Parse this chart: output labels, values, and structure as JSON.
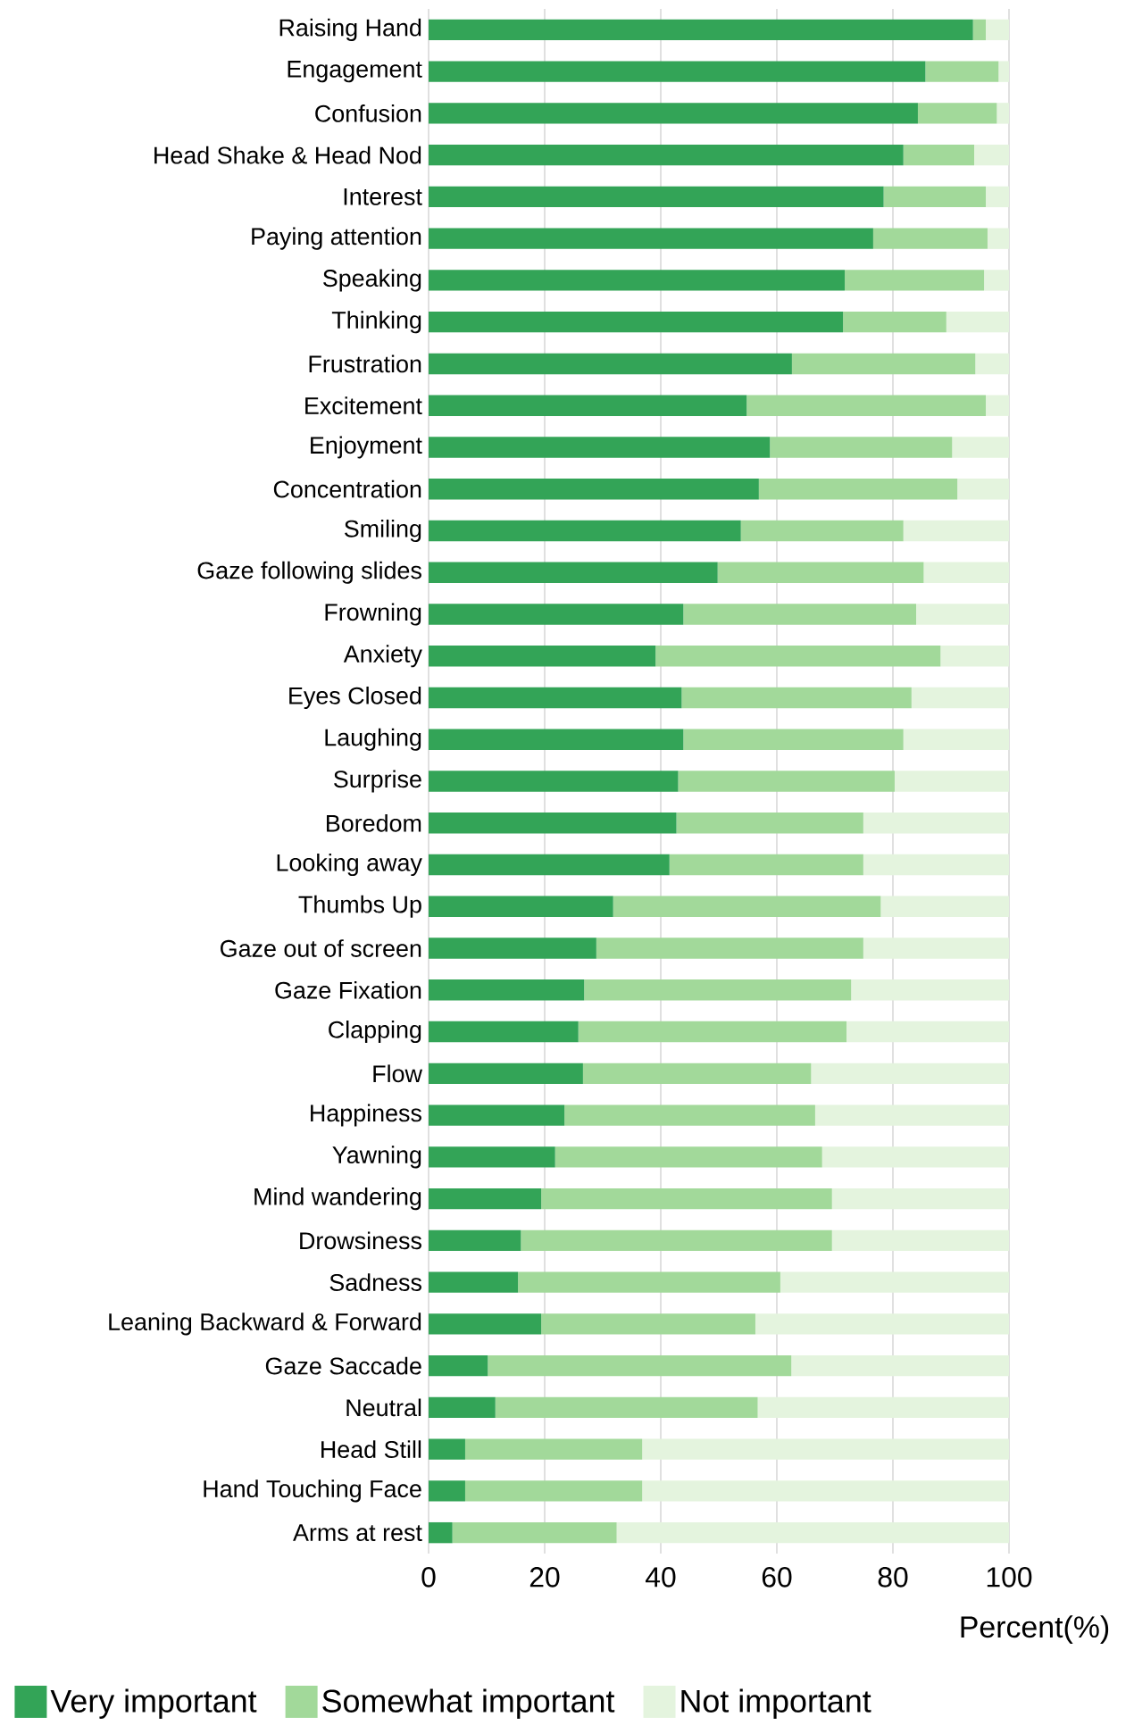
{
  "chart_data": {
    "type": "bar",
    "orientation": "horizontal",
    "stacked": true,
    "categories": [
      "Raising Hand",
      "Engagement",
      "Confusion",
      "Head Shake & Head Nod",
      "Interest",
      "Paying attention",
      "Speaking",
      "Thinking",
      "Frustration",
      "Excitement",
      "Enjoyment",
      "Concentration",
      "Smiling",
      "Gaze following slides",
      "Frowning",
      "Anxiety",
      "Eyes Closed",
      "Laughing",
      "Surprise",
      "Boredom",
      "Looking away",
      "Thumbs Up",
      "Gaze out of screen",
      "Gaze Fixation",
      "Clapping",
      "Flow",
      "Happiness",
      "Yawning",
      "Mind wandering",
      "Drowsiness",
      "Sadness",
      "Leaning Backward & Forward",
      "Gaze Saccade",
      "Neutral",
      "Head Still",
      "Hand Touching Face",
      "Arms at rest"
    ],
    "series": [
      {
        "name": "Very important",
        "color": "#33a457",
        "values": [
          93.8,
          85.6,
          84.3,
          81.8,
          78.4,
          76.6,
          71.7,
          71.4,
          62.6,
          54.8,
          58.8,
          56.9,
          53.8,
          49.8,
          43.9,
          39.1,
          43.6,
          43.9,
          43.0,
          42.7,
          41.5,
          31.8,
          28.9,
          26.8,
          25.8,
          26.6,
          23.4,
          21.8,
          19.4,
          15.9,
          15.4,
          19.4,
          10.2,
          11.5,
          6.3,
          6.3,
          4.1
        ]
      },
      {
        "name": "Somewhat important",
        "color": "#a2d99a",
        "values": [
          2.2,
          12.6,
          13.6,
          12.2,
          17.6,
          19.7,
          24.0,
          17.8,
          31.6,
          41.2,
          31.4,
          34.2,
          28.0,
          35.5,
          40.1,
          49.1,
          39.6,
          37.9,
          37.3,
          32.2,
          33.4,
          46.1,
          46.0,
          46.0,
          46.2,
          39.3,
          43.2,
          46.0,
          50.1,
          53.6,
          45.2,
          36.9,
          52.3,
          45.2,
          30.5,
          30.5,
          28.3
        ]
      },
      {
        "name": "Not important",
        "color": "#e4f4de",
        "values": [
          4.0,
          1.8,
          2.1,
          6.0,
          4.0,
          3.7,
          4.3,
          10.8,
          5.8,
          4.0,
          9.8,
          8.9,
          18.2,
          14.7,
          16.0,
          11.8,
          16.8,
          18.2,
          19.7,
          25.1,
          25.1,
          22.1,
          25.1,
          27.2,
          28.0,
          34.1,
          33.4,
          32.2,
          30.5,
          30.5,
          39.4,
          43.7,
          37.5,
          43.3,
          63.2,
          63.2,
          67.6
        ]
      }
    ],
    "xlim": [
      0,
      100
    ],
    "xticks": [
      0,
      20,
      40,
      60,
      80,
      100
    ],
    "xlabel": "Percent(%)",
    "grid": "x",
    "legend": "bottom"
  }
}
